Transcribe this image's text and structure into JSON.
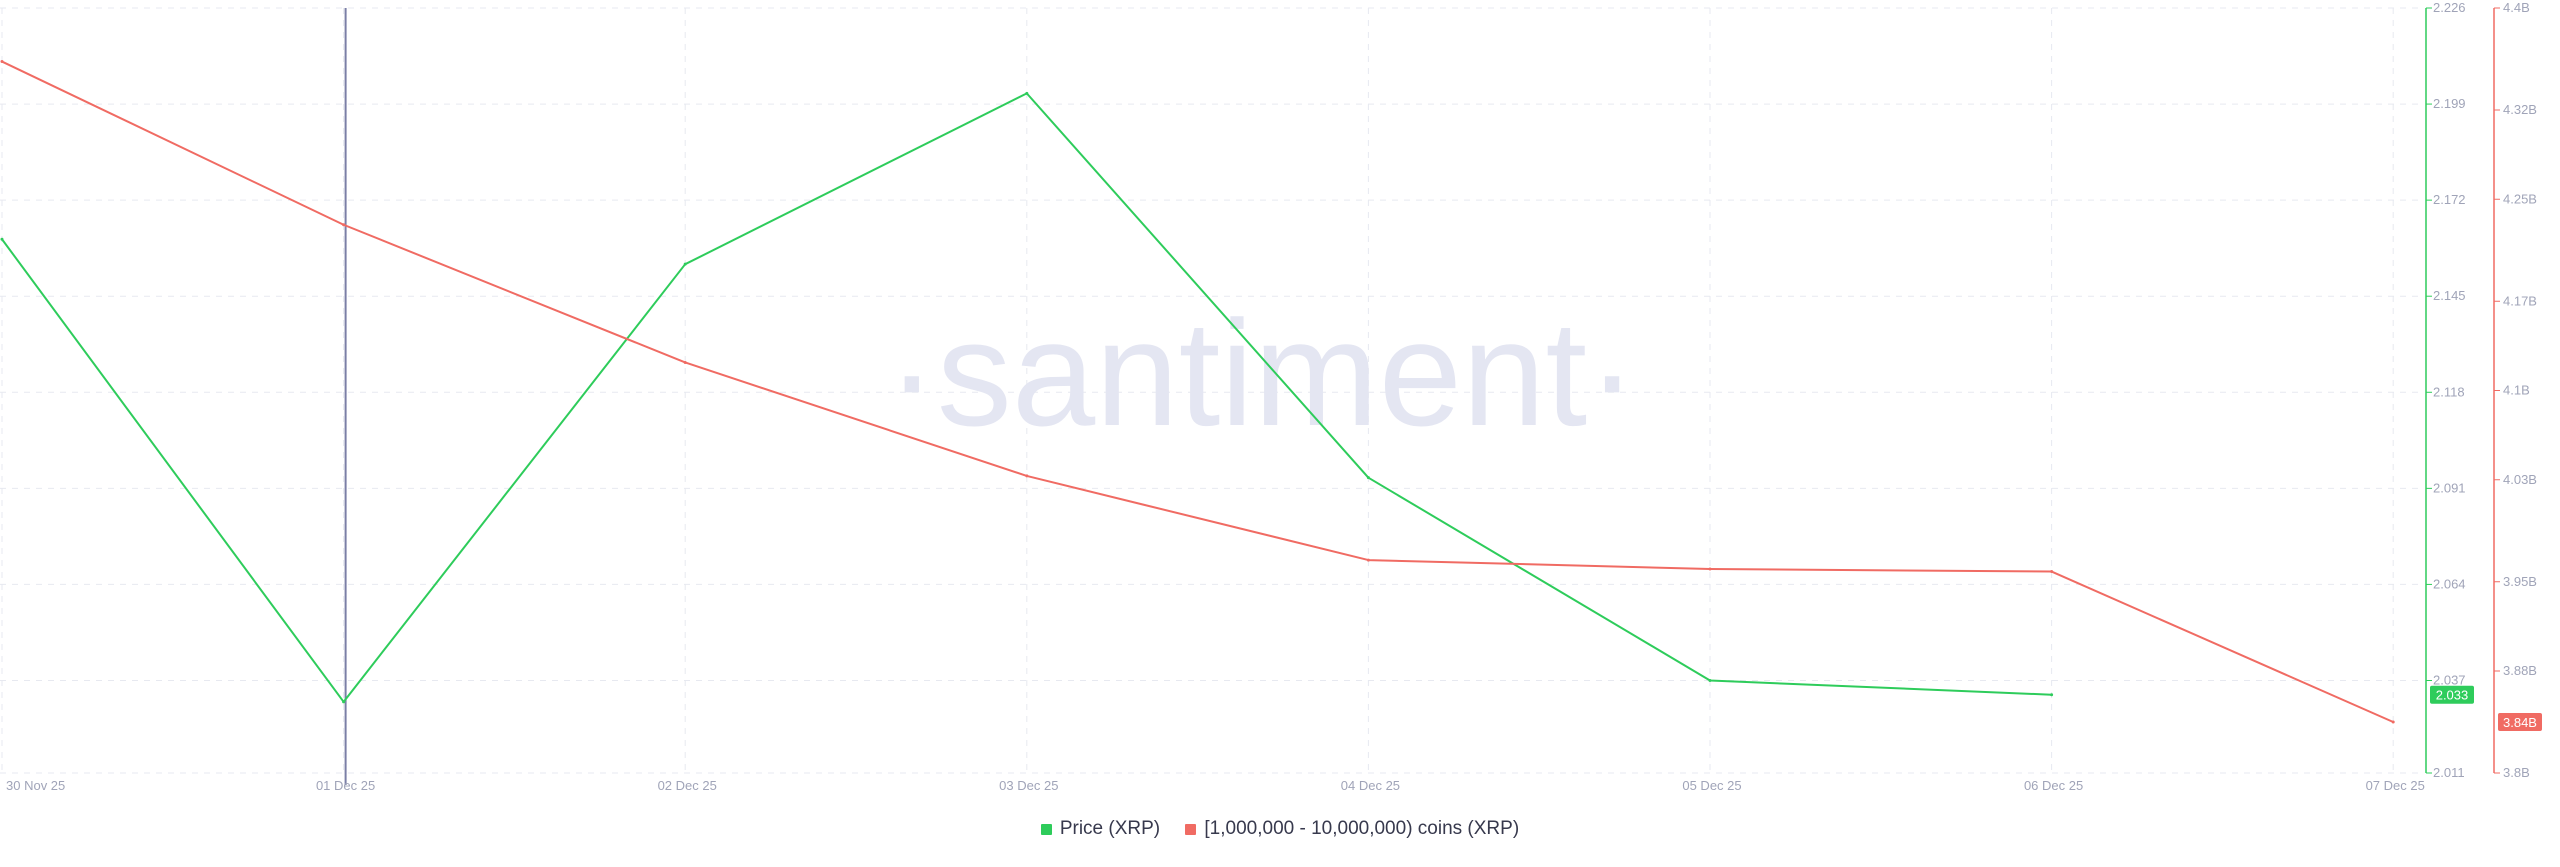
{
  "watermark": "·santiment·",
  "colors": {
    "price": "#2ecc5b",
    "holders": "#f06b63",
    "grid": "#e7e9f0",
    "crosshair": "#7b7fa6",
    "axis_text": "#a0a4b8"
  },
  "chart_data": {
    "type": "line",
    "title": "",
    "x": [
      "30 Nov 25",
      "01 Dec 25",
      "02 Dec 25",
      "03 Dec 25",
      "04 Dec 25",
      "05 Dec 25",
      "06 Dec 25",
      "07 Dec 25"
    ],
    "x_ticks": [
      "30 Nov 25",
      "01 Dec 25",
      "02 Dec 25",
      "03 Dec 25",
      "04 Dec 25",
      "05 Dec 25",
      "06 Dec 25",
      "07 Dec 25"
    ],
    "crosshair_x": "01 Dec 25",
    "grid": true,
    "legend_position": "bottom-center",
    "y_axes": [
      {
        "id": "price",
        "ylim": [
          2.011,
          2.226
        ],
        "ticks": [
          "2.226",
          "2.199",
          "2.172",
          "2.145",
          "2.118",
          "2.091",
          "2.064",
          "2.037",
          "2.011"
        ],
        "tick_values": [
          2.226,
          2.199,
          2.172,
          2.145,
          2.118,
          2.091,
          2.064,
          2.037,
          2.011
        ],
        "current_label": "2.033",
        "current_value": 2.033
      },
      {
        "id": "holders",
        "ylim": [
          3.8,
          4.4
        ],
        "ticks": [
          "4.4B",
          "4.32B",
          "4.25B",
          "4.17B",
          "4.1B",
          "4.03B",
          "3.95B",
          "3.88B",
          "3.8B"
        ],
        "tick_values": [
          4.4,
          4.32,
          4.25,
          4.17,
          4.1,
          4.03,
          3.95,
          3.88,
          3.8
        ],
        "current_label": "3.84B",
        "current_value": 3.84
      }
    ],
    "series": [
      {
        "name": "Price (XRP)",
        "axis": "price",
        "color": "#2ecc5b",
        "x": [
          "30 Nov 25",
          "01 Dec 25",
          "02 Dec 25",
          "03 Dec 25",
          "04 Dec 25",
          "05 Dec 25",
          "06 Dec 25"
        ],
        "values": [
          2.161,
          2.031,
          2.154,
          2.202,
          2.094,
          2.037,
          2.033
        ]
      },
      {
        "name": "[1,000,000 - 10,000,000) coins (XRP)",
        "axis": "holders",
        "color": "#f06b63",
        "x": [
          "30 Nov 25",
          "01 Dec 25",
          "02 Dec 25",
          "03 Dec 25",
          "04 Dec 25",
          "05 Dec 25",
          "06 Dec 25",
          "07 Dec 25"
        ],
        "values": [
          4.358,
          4.23,
          4.122,
          4.033,
          3.967,
          3.96,
          3.958,
          3.84
        ]
      }
    ]
  }
}
